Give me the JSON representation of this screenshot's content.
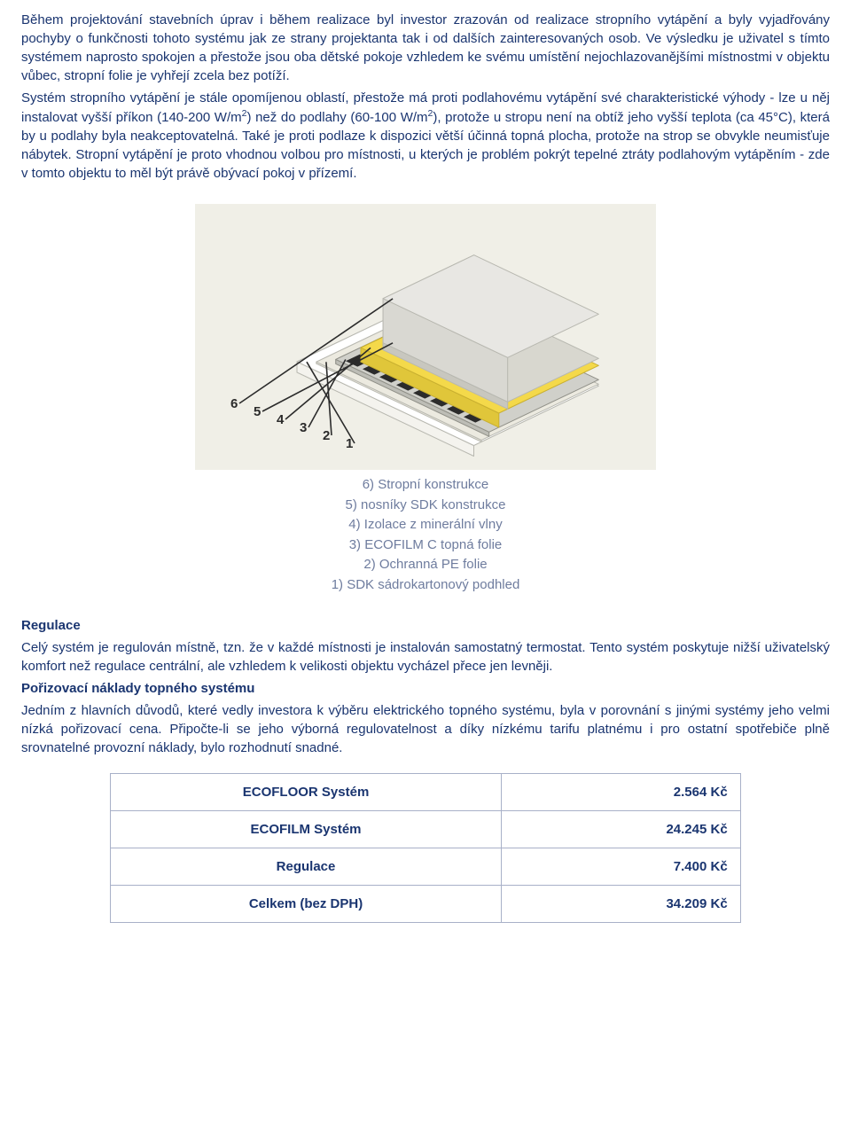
{
  "text": {
    "p1": "Během projektování stavebních úprav i během realizace byl investor zrazován od realizace stropního vytápění a byly vyjadřovány pochyby o funkčnosti tohoto systému jak ze strany projektanta tak i od dalších zainteresovaných osob. Ve výsledku je uživatel s tímto systémem naprosto spokojen a přestože jsou oba dětské pokoje vzhledem ke svému umístění nejochlazovanějšími místnostmi v objektu vůbec, stropní folie je vyhřejí zcela bez potíží.",
    "p2_a": "Systém stropního vytápění je stále opomíjenou oblastí, přestože má proti podlahovému vytápění své charakteristické výhody - lze u něj instalovat vyšší příkon (140-200 W/m",
    "p2_b": ") než do podlahy (60-100 W/m",
    "p2_c": "), protože u stropu není na obtíž jeho vyšší teplota (ca 45°C), která by u podlahy byla neakceptovatelná. Také je proti podlaze k dispozici větší účinná topná plocha, protože na strop se obvykle neumisťuje nábytek. Stropní vytápění je proto vhodnou volbou pro místnosti, u kterých je problém pokrýt tepelné ztráty podlahovým vytápěním - zde v tomto objektu to měl být právě obývací pokoj v přízemí.",
    "sup": "2",
    "regulace_title": "Regulace",
    "regulace_body": "Celý systém je regulován místně, tzn. že v každé místnosti je instalován samostatný termostat. Tento systém poskytuje nižší uživatelský komfort než regulace centrální, ale vzhledem k velikosti objektu vycházel přece jen levněji.",
    "cost_title": "Pořizovací náklady topného systému",
    "cost_body": "Jedním z hlavních důvodů, které vedly investora k výběru elektrického topného systému, byla v porovnání s jinými systémy jeho velmi nízká pořizovací cena. Připočte-li se jeho výborná regulovatelnost a díky nízkému tarifu platnému i pro ostatní spotřebiče plně srovnatelné provozní náklady, bylo rozhodnutí snadné."
  },
  "diagram": {
    "labels": [
      "6",
      "5",
      "4",
      "3",
      "2",
      "1"
    ],
    "legend": [
      "6) Stropní konstrukce",
      "5) nosníky SDK konstrukce",
      "4) Izolace z minerální vlny",
      "3) ECOFILM C topná folie",
      "2) Ochranná PE folie",
      "1) SDK sádrokartonový podhled"
    ],
    "colors": {
      "bg": "#f0efe7",
      "slab": "#e8e7e3",
      "slab_stroke": "#b8b8b0",
      "beam": "#d8d7cf",
      "insulation": "#f4d94a",
      "foil_dark": "#2b2b2b",
      "foil_light": "#d0d0ca",
      "pe": "#eceae0",
      "bottom": "#ffffff",
      "leader": "#2b2b2b",
      "label": "#2b2b2b"
    }
  },
  "cost_table": {
    "rows": [
      {
        "label": "ECOFLOOR Systém",
        "value": "2.564 Kč"
      },
      {
        "label": "ECOFILM Systém",
        "value": "24.245 Kč"
      },
      {
        "label": "Regulace",
        "value": "7.400 Kč"
      },
      {
        "label": "Celkem (bez DPH)",
        "value": "34.209 Kč"
      }
    ]
  }
}
